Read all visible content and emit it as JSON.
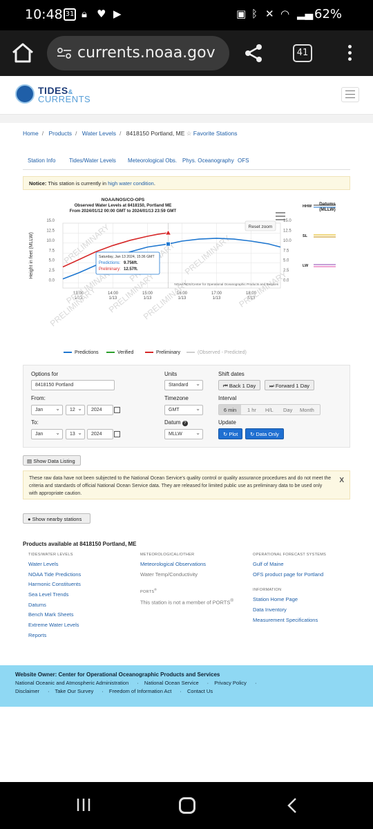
{
  "status": {
    "time": "10:48",
    "calendar_badge": "31",
    "battery": "62%"
  },
  "browser": {
    "url": "currents.noaa.gov",
    "tab_count": "41"
  },
  "site": {
    "logo_line1": "TIDES",
    "logo_amp": "&",
    "logo_line2": "CURRENTS",
    "breadcrumb": {
      "home": "Home",
      "products": "Products",
      "water_levels": "Water Levels",
      "station": "8418150 Portland, ME",
      "favorite": "Favorite Stations"
    },
    "tabs": [
      "Station Info",
      "Tides/Water Levels",
      "Meteorological Obs.",
      "Phys. Oceanography",
      "OFS"
    ],
    "notice": {
      "label": "Notice:",
      "text": "This station is currently in",
      "link": "high water condition",
      "end": "."
    }
  },
  "chart_data": {
    "type": "line",
    "title_lines": [
      "NOAA/NOS/CO-OPS",
      "Observed Water Levels at 8418150, Portland ME",
      "From 2024/01/12 00:00 GMT to 2024/01/13 23:59 GMT"
    ],
    "ylabel": "Height in feet (MLLW)",
    "ylim": [
      -1.3,
      15
    ],
    "y_ticks": [
      "15.0",
      "12.5",
      "10.0",
      "7.5",
      "5.0",
      "2.5",
      "0.0"
    ],
    "y_tick_values": [
      15,
      12.5,
      10,
      7.5,
      5,
      2.5,
      0
    ],
    "x_ticks": [
      {
        "t": 13.0,
        "l1": "13:00",
        "l2": "1/13"
      },
      {
        "t": 14.0,
        "l1": "14:00",
        "l2": "1/13"
      },
      {
        "t": 15.0,
        "l1": "15:00",
        "l2": "1/13"
      },
      {
        "t": 16.0,
        "l1": "16:00",
        "l2": "1/13"
      },
      {
        "t": 17.0,
        "l1": "17:00",
        "l2": "1/13"
      },
      {
        "t": 18.0,
        "l1": "18:00",
        "l2": "1/13"
      }
    ],
    "xlim": [
      12.55,
      18.85
    ],
    "watermark": "PRELIMINARY",
    "credit": "NOAA/NOS/Center for Operational Oceanographic Products and Services",
    "reset_zoom": "Reset zoom",
    "series": [
      {
        "name": "Predictions",
        "color": "#1f77d0",
        "x": [
          12.55,
          13.0,
          13.5,
          14.0,
          14.5,
          15.0,
          15.6,
          16.0,
          16.5,
          17.0,
          17.5,
          18.0,
          18.5,
          18.85
        ],
        "y": [
          1.0,
          2.5,
          4.4,
          6.2,
          7.8,
          9.0,
          9.76,
          10.5,
          11.0,
          11.2,
          11.0,
          10.5,
          9.8,
          9.0
        ]
      },
      {
        "name": "Preliminary",
        "color": "#d62728",
        "x": [
          12.55,
          13.0,
          13.5,
          14.0,
          14.5,
          15.0,
          15.3,
          15.6
        ],
        "y": [
          4.0,
          5.8,
          7.8,
          9.4,
          10.7,
          11.7,
          12.2,
          12.57
        ]
      }
    ],
    "legend": [
      {
        "name": "Predictions",
        "color": "#1f77d0"
      },
      {
        "name": "Verified",
        "color": "#2ca02c"
      },
      {
        "name": "Preliminary",
        "color": "#d62728"
      },
      {
        "name": "(Observed - Predicted)",
        "color": "#cfcfcf"
      }
    ],
    "tooltip": {
      "title": "Saturday, Jan 13 2024, 15:36 GMT",
      "pred_label": "Predictions:",
      "pred_value": "9.756ft.",
      "prelim_label": "Preliminary:",
      "prelim_value": "12.57ft."
    },
    "datums": {
      "title1": "Datums",
      "title2": "(MLLW)",
      "items": [
        {
          "label": "HHW",
          "color1": "#333",
          "color2": "#1f77d0"
        },
        {
          "label": "SL",
          "color1": "#e2b200",
          "color2": "#c38a00"
        },
        {
          "label": "LW",
          "color1": "#8b3fb0",
          "color2": "#e04aa6"
        }
      ]
    }
  },
  "options": {
    "title": "Options for",
    "station_value": "8418150 Portland",
    "from_label": "From:",
    "from": {
      "month": "Jan",
      "day": "12",
      "year": "2024"
    },
    "to_label": "To:",
    "to": {
      "month": "Jan",
      "day": "13",
      "year": "2024"
    },
    "units_label": "Units",
    "units_value": "Standard",
    "timezone_label": "Timezone",
    "timezone_value": "GMT",
    "datum_label": "Datum",
    "datum_value": "MLLW",
    "shift_label": "Shift dates",
    "back_btn": "Back 1 Day",
    "forward_btn": "Forward 1 Day",
    "interval_label": "Interval",
    "intervals": [
      "6 min",
      "1 hr",
      "H/L",
      "Day",
      "Month"
    ],
    "update_label": "Update",
    "plot_btn": "Plot",
    "data_only_btn": "Data Only"
  },
  "show_data": "Show Data Listing",
  "disclaimer": "These raw data have not been subjected to the National Ocean Service's quality control or quality assurance procedures and do not meet the criteria and standards of official National Ocean Service data. They are released for limited public use as preliminary data to be used only with appropriate caution.",
  "disclaimer_close": "X",
  "nearby": "Show nearby stations",
  "products": {
    "title": "Products available at 8418150 Portland, ME",
    "col1_heading": "TIDES/WATER LEVELS",
    "col1": [
      "Water Levels",
      "NOAA Tide Predictions",
      "Harmonic Constituents",
      "Sea Level Trends",
      "Datums",
      "Bench Mark Sheets",
      "Extreme Water Levels",
      "Reports"
    ],
    "col2_heading": "METEOROLOGICAL/OTHER",
    "col2_link": "Meteorological Observations",
    "col2_gray": "Water Temp/Conductivity",
    "ports_heading": "PORTS",
    "ports_sup": "®",
    "ports_text": "This station is not a member of PORTS",
    "col3_heading": "OPERATIONAL FORECAST SYSTEMS",
    "col3": [
      "Gulf of Maine",
      "OFS product page for Portland"
    ],
    "info_heading": "INFORMATION",
    "info": [
      "Station Home Page",
      "Data Inventory",
      "Measurement Specifications"
    ]
  },
  "footer": {
    "title": "Website Owner: Center for Operational Oceanographic Products and Services",
    "row1": [
      "National Oceanic and Atmospheric Administration",
      "National Ocean Service",
      "Privacy Policy"
    ],
    "row2": [
      "Disclaimer",
      "Take Our Survey",
      "Freedom of Information Act",
      "Contact Us"
    ]
  }
}
